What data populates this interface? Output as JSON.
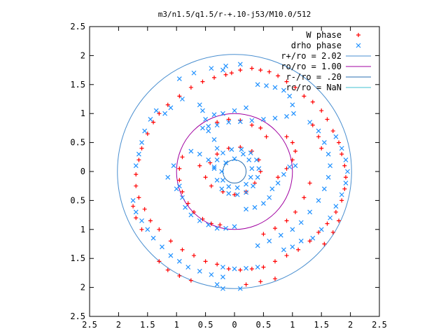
{
  "chart_data": {
    "type": "scatter",
    "title": "m3/n1.5/q1.5/r-+.10-j53/M10.0/512",
    "xlabel": "",
    "ylabel": "",
    "xlim": [
      -2.5,
      2.5
    ],
    "ylim": [
      -2.5,
      2.5
    ],
    "x_ticks": [
      -2.5,
      -2,
      -1.5,
      -1,
      -0.5,
      0,
      0.5,
      1,
      1.5,
      2,
      2.5
    ],
    "y_ticks": [
      -2.5,
      -2,
      -1.5,
      -1,
      -0.5,
      0,
      0.5,
      1,
      1.5,
      2,
      2.5
    ],
    "x_tick_labels": [
      "2.5",
      "2",
      "1.5",
      "1",
      "0.5",
      "0",
      "0.5",
      "1",
      "1.5",
      "2",
      "2.5"
    ],
    "y_tick_labels": [
      "2.5",
      "2",
      "1.5",
      "1",
      "0.5",
      "0",
      "0.5",
      "1",
      "1.5",
      "2",
      "2.5"
    ],
    "grid": false,
    "legend_position": "top-right",
    "legend": [
      {
        "label": "W phase",
        "kind": "points",
        "marker": "plus",
        "color": "#ff0000"
      },
      {
        "label": "drho phase",
        "kind": "points",
        "marker": "cross",
        "color": "#1e90ff"
      },
      {
        "label": "r+/ro = 2.02",
        "kind": "circle",
        "r": 2.02,
        "color": "#4a8fd0"
      },
      {
        "label": "ro/ro = 1.00",
        "kind": "circle",
        "r": 1.0,
        "color": "#a000a0"
      },
      {
        "label": "r-/ro = .20",
        "kind": "circle",
        "r": 0.2,
        "color": "#2a6fb0"
      },
      {
        "label": "rc/ro = NaN",
        "kind": "circle",
        "r": null,
        "color": "#40c0d0"
      }
    ],
    "series": [
      {
        "name": "W phase",
        "color": "#ff0000",
        "marker": "plus",
        "points": [
          [
            -0.05,
            1.7
          ],
          [
            0.1,
            1.75
          ],
          [
            0.3,
            1.78
          ],
          [
            0.45,
            1.75
          ],
          [
            0.6,
            1.72
          ],
          [
            0.75,
            1.65
          ],
          [
            0.9,
            1.55
          ],
          [
            1.05,
            1.45
          ],
          [
            1.2,
            1.3
          ],
          [
            1.35,
            1.2
          ],
          [
            1.5,
            1.05
          ],
          [
            1.6,
            0.9
          ],
          [
            1.7,
            0.7
          ],
          [
            1.8,
            0.5
          ],
          [
            1.85,
            0.3
          ],
          [
            1.9,
            0.1
          ],
          [
            1.92,
            -0.1
          ],
          [
            1.9,
            -0.3
          ],
          [
            1.85,
            -0.5
          ],
          [
            1.75,
            -0.7
          ],
          [
            1.6,
            -0.9
          ],
          [
            1.45,
            -1.05
          ],
          [
            1.3,
            -1.2
          ],
          [
            1.1,
            -1.35
          ],
          [
            0.9,
            -1.45
          ],
          [
            0.7,
            -1.55
          ],
          [
            0.5,
            -1.65
          ],
          [
            0.3,
            -1.68
          ],
          [
            0.1,
            -1.7
          ],
          [
            -0.1,
            -1.68
          ],
          [
            -0.3,
            -1.6
          ],
          [
            -0.5,
            -1.55
          ],
          [
            -0.7,
            -1.45
          ],
          [
            -0.9,
            -1.35
          ],
          [
            -1.1,
            -1.2
          ],
          [
            -1.3,
            -1.0
          ],
          [
            -1.45,
            -0.85
          ],
          [
            -1.55,
            -0.65
          ],
          [
            -1.65,
            -0.45
          ],
          [
            -1.7,
            -0.25
          ],
          [
            -1.7,
            -0.05
          ],
          [
            -1.65,
            0.2
          ],
          [
            -1.6,
            0.4
          ],
          [
            -1.5,
            0.65
          ],
          [
            -1.4,
            0.85
          ],
          [
            -1.3,
            1.0
          ],
          [
            -1.15,
            1.15
          ],
          [
            -0.95,
            1.3
          ],
          [
            -0.75,
            1.45
          ],
          [
            -0.55,
            1.55
          ],
          [
            -0.35,
            1.62
          ],
          [
            -0.15,
            1.67
          ],
          [
            -0.6,
            0.1
          ],
          [
            -0.5,
            -0.1
          ],
          [
            -0.4,
            -0.25
          ],
          [
            -0.2,
            -0.35
          ],
          [
            0.0,
            -0.4
          ],
          [
            0.2,
            -0.35
          ],
          [
            0.35,
            -0.2
          ],
          [
            0.45,
            0.0
          ],
          [
            0.42,
            0.2
          ],
          [
            0.3,
            0.35
          ],
          [
            0.1,
            0.42
          ],
          [
            -0.1,
            0.4
          ],
          [
            -0.3,
            0.3
          ],
          [
            -0.42,
            0.15
          ],
          [
            0.75,
            -0.1
          ],
          [
            0.9,
            0.05
          ],
          [
            1.0,
            0.2
          ],
          [
            1.05,
            0.35
          ],
          [
            1.0,
            0.5
          ],
          [
            0.9,
            0.6
          ],
          [
            -0.8,
            -0.55
          ],
          [
            -0.7,
            -0.7
          ],
          [
            -0.55,
            -0.82
          ],
          [
            -0.4,
            -0.9
          ],
          [
            -0.25,
            -0.92
          ],
          [
            -0.9,
            -0.35
          ],
          [
            -0.95,
            -0.15
          ],
          [
            -0.95,
            0.05
          ],
          [
            -0.9,
            0.25
          ],
          [
            1.3,
            -0.2
          ],
          [
            1.2,
            -0.45
          ],
          [
            1.05,
            -0.7
          ],
          [
            0.9,
            -0.85
          ],
          [
            0.7,
            -0.98
          ],
          [
            0.5,
            -1.08
          ],
          [
            1.5,
            0.4
          ],
          [
            1.45,
            0.6
          ],
          [
            1.35,
            0.8
          ],
          [
            -1.3,
            -1.55
          ],
          [
            -1.15,
            -1.7
          ],
          [
            -0.95,
            -1.8
          ],
          [
            -0.75,
            -1.88
          ],
          [
            0.2,
            -1.95
          ],
          [
            0.45,
            -1.9
          ],
          [
            0.7,
            -1.85
          ],
          [
            -0.3,
            0.85
          ],
          [
            -0.1,
            0.9
          ],
          [
            0.1,
            0.88
          ],
          [
            0.3,
            0.8
          ],
          [
            0.45,
            0.75
          ],
          [
            0.55,
            0.6
          ],
          [
            1.55,
            -1.25
          ],
          [
            1.7,
            -1.05
          ],
          [
            1.8,
            -0.85
          ],
          [
            -1.75,
            -0.6
          ],
          [
            -1.7,
            -0.8
          ],
          [
            -1.6,
            -1.0
          ]
        ]
      },
      {
        "name": "drho phase",
        "color": "#1e90ff",
        "marker": "cross",
        "points": [
          [
            -0.95,
            1.6
          ],
          [
            -0.7,
            1.7
          ],
          [
            -0.4,
            1.78
          ],
          [
            -0.15,
            1.82
          ],
          [
            0.1,
            1.85
          ],
          [
            -0.2,
            1.75
          ],
          [
            0.4,
            1.5
          ],
          [
            0.55,
            1.48
          ],
          [
            0.7,
            1.45
          ],
          [
            0.85,
            1.4
          ],
          [
            0.95,
            1.3
          ],
          [
            1.0,
            1.15
          ],
          [
            1.02,
            1.0
          ],
          [
            0.9,
            0.95
          ],
          [
            0.7,
            0.92
          ],
          [
            0.5,
            0.9
          ],
          [
            0.3,
            0.88
          ],
          [
            0.1,
            0.86
          ],
          [
            -0.1,
            0.85
          ],
          [
            -0.3,
            0.8
          ],
          [
            -0.45,
            0.78
          ],
          [
            -0.55,
            0.75
          ],
          [
            -0.5,
            0.9
          ],
          [
            -0.35,
            0.98
          ],
          [
            -0.2,
            1.0
          ],
          [
            0.0,
            1.05
          ],
          [
            0.2,
            1.1
          ],
          [
            -0.6,
            1.15
          ],
          [
            -0.55,
            1.05
          ],
          [
            -0.75,
            0.35
          ],
          [
            -0.6,
            0.3
          ],
          [
            -0.45,
            0.2
          ],
          [
            -0.35,
            0.05
          ],
          [
            -0.3,
            -0.15
          ],
          [
            -0.22,
            -0.3
          ],
          [
            -0.1,
            -0.38
          ],
          [
            0.05,
            -0.4
          ],
          [
            0.2,
            -0.36
          ],
          [
            0.32,
            -0.25
          ],
          [
            0.4,
            -0.1
          ],
          [
            0.42,
            0.05
          ],
          [
            0.38,
            0.2
          ],
          [
            0.28,
            0.32
          ],
          [
            0.12,
            0.38
          ],
          [
            -0.05,
            0.38
          ],
          [
            -0.2,
            0.32
          ],
          [
            -0.3,
            0.2
          ],
          [
            -0.35,
            0.08
          ],
          [
            0.15,
            0.3
          ],
          [
            0.25,
            0.2
          ],
          [
            0.3,
            0.05
          ],
          [
            0.28,
            -0.1
          ],
          [
            0.2,
            -0.22
          ],
          [
            0.05,
            -0.28
          ],
          [
            -0.1,
            -0.26
          ],
          [
            -0.2,
            -0.15
          ],
          [
            -0.22,
            0.0
          ],
          [
            -0.15,
            0.15
          ],
          [
            0.0,
            0.22
          ],
          [
            0.65,
            -0.3
          ],
          [
            0.75,
            -0.2
          ],
          [
            0.85,
            -0.05
          ],
          [
            0.95,
            0.08
          ],
          [
            1.05,
            0.1
          ],
          [
            0.6,
            -0.45
          ],
          [
            0.5,
            -0.55
          ],
          [
            0.35,
            -0.62
          ],
          [
            0.2,
            -0.65
          ],
          [
            -0.95,
            -0.25
          ],
          [
            -0.9,
            -0.45
          ],
          [
            -0.85,
            -0.62
          ],
          [
            -0.75,
            -0.75
          ],
          [
            -0.6,
            -0.85
          ],
          [
            -0.45,
            -0.92
          ],
          [
            -0.3,
            -0.98
          ],
          [
            -0.15,
            -0.98
          ],
          [
            0.0,
            -0.95
          ],
          [
            -1.15,
            -0.1
          ],
          [
            -1.05,
            0.1
          ],
          [
            -1.0,
            -0.3
          ],
          [
            -1.7,
            0.1
          ],
          [
            -1.65,
            0.3
          ],
          [
            -1.6,
            0.5
          ],
          [
            -1.55,
            0.7
          ],
          [
            -1.45,
            0.9
          ],
          [
            -1.35,
            1.05
          ],
          [
            -1.75,
            -0.5
          ],
          [
            -1.7,
            -0.7
          ],
          [
            -1.6,
            -0.85
          ],
          [
            -1.5,
            -1.0
          ],
          [
            -1.4,
            -1.15
          ],
          [
            -1.25,
            -1.3
          ],
          [
            -1.1,
            -1.45
          ],
          [
            -0.95,
            -1.55
          ],
          [
            -0.8,
            -1.65
          ],
          [
            -0.6,
            -1.72
          ],
          [
            -0.4,
            -1.78
          ],
          [
            -0.2,
            -1.82
          ],
          [
            1.3,
            0.85
          ],
          [
            1.45,
            0.7
          ],
          [
            1.55,
            0.5
          ],
          [
            1.62,
            0.3
          ],
          [
            1.65,
            0.1
          ],
          [
            1.62,
            -0.1
          ],
          [
            1.55,
            -0.3
          ],
          [
            1.45,
            -0.5
          ],
          [
            1.3,
            -0.7
          ],
          [
            1.15,
            -0.88
          ],
          [
            1.0,
            -1.0
          ],
          [
            0.8,
            -1.1
          ],
          [
            0.6,
            -1.2
          ],
          [
            0.4,
            -1.28
          ],
          [
            1.75,
            0.6
          ],
          [
            1.85,
            0.4
          ],
          [
            1.92,
            0.2
          ],
          [
            1.95,
            0.0
          ],
          [
            1.92,
            -0.2
          ],
          [
            1.85,
            -0.4
          ],
          [
            1.75,
            -0.6
          ],
          [
            1.65,
            -0.8
          ],
          [
            1.5,
            -1.0
          ],
          [
            1.35,
            -1.15
          ],
          [
            -0.2,
            -1.65
          ],
          [
            0.0,
            -1.68
          ],
          [
            0.2,
            -1.67
          ],
          [
            0.4,
            -1.65
          ],
          [
            -0.2,
            -2.02
          ],
          [
            0.1,
            -2.02
          ],
          [
            -0.3,
            -1.95
          ],
          [
            -1.2,
            1.0
          ],
          [
            -1.1,
            1.1
          ],
          [
            -0.9,
            1.25
          ],
          [
            0.85,
            -1.35
          ],
          [
            1.0,
            -1.3
          ],
          [
            1.15,
            -1.2
          ],
          [
            -0.45,
            0.7
          ],
          [
            -0.35,
            0.55
          ],
          [
            -0.3,
            0.4
          ]
        ]
      }
    ]
  }
}
